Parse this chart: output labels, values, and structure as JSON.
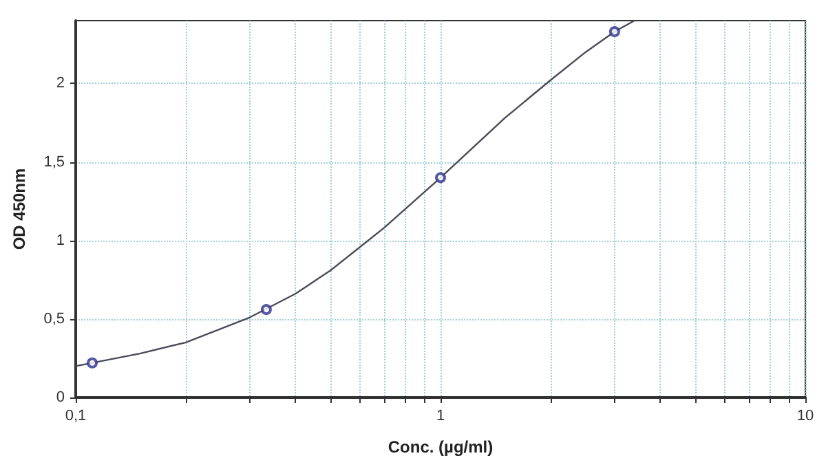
{
  "chart_data": {
    "type": "scatter",
    "xlabel": "Conc. (µg/ml)",
    "ylabel": "OD 450nm",
    "log": "x",
    "grid": true,
    "marker": "circle",
    "xlim": [
      0.1,
      10
    ],
    "ylim": [
      0,
      2.4
    ],
    "xticks": [
      {
        "value": 0.1,
        "label": "0,1"
      },
      {
        "value": 0.2,
        "label": null
      },
      {
        "value": 0.3,
        "label": null
      },
      {
        "value": 0.4,
        "label": null
      },
      {
        "value": 0.5,
        "label": null
      },
      {
        "value": 0.6,
        "label": null
      },
      {
        "value": 0.7,
        "label": null
      },
      {
        "value": 0.8,
        "label": null
      },
      {
        "value": 0.9,
        "label": null
      },
      1,
      {
        "value": 2,
        "label": null
      },
      {
        "value": 3,
        "label": null
      },
      {
        "value": 4,
        "label": null
      },
      {
        "value": 5,
        "label": null
      },
      {
        "value": 6,
        "label": null
      },
      {
        "value": 7,
        "label": null
      },
      {
        "value": 8,
        "label": null
      },
      {
        "value": 9,
        "label": null
      },
      10
    ],
    "yticks": [
      0,
      {
        "value": 0.5,
        "label": "0,5"
      },
      1,
      {
        "value": 1.5,
        "label": "1,5"
      },
      2
    ],
    "series": [
      {
        "type": "line",
        "color": "#4a4a5a",
        "marker": "none",
        "x": [
          0.1,
          0.15,
          0.2,
          0.3,
          0.4,
          0.5,
          0.7,
          1,
          1.5,
          2,
          2.5,
          3,
          3.4
        ],
        "values": [
          0.2,
          0.28,
          0.35,
          0.51,
          0.66,
          0.81,
          1.08,
          1.4,
          1.78,
          2.02,
          2.2,
          2.33,
          2.4
        ]
      },
      {
        "color": "#2b2f8f",
        "x": [
          0.111,
          0.333,
          1,
          3
        ],
        "values": [
          0.22,
          0.56,
          1.4,
          2.33
        ]
      }
    ]
  }
}
